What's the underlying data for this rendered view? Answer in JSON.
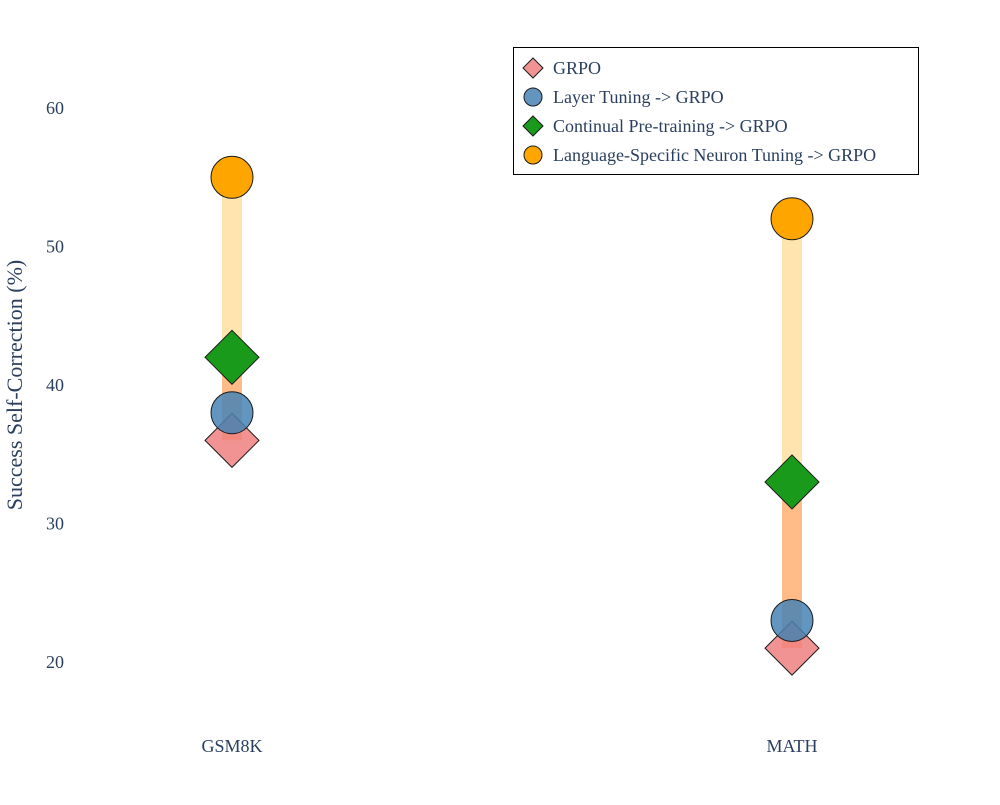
{
  "chart_data": {
    "type": "scatter",
    "categories": [
      "GSM8K",
      "MATH"
    ],
    "ylabel": "Success Self-Correction (%)",
    "xlabel": "",
    "ylim": [
      15,
      65
    ],
    "yticks": [
      20,
      30,
      40,
      50,
      60
    ],
    "grid": false,
    "legend_position": "top-right",
    "series": [
      {
        "name": "GRPO",
        "marker": "diamond",
        "color": "#f08080",
        "opacity": 0.85,
        "values": [
          36,
          21
        ]
      },
      {
        "name": "Layer Tuning -> GRPO",
        "marker": "circle",
        "color": "#4682b4",
        "opacity": 0.85,
        "values": [
          38,
          23
        ]
      },
      {
        "name": "Continual Pre-training -> GRPO",
        "marker": "diamond",
        "color": "#1a9a1a",
        "opacity": 1,
        "values": [
          42,
          33
        ]
      },
      {
        "name": "Language-Specific Neuron Tuning -> GRPO",
        "marker": "circle",
        "color": "#ffa500",
        "opacity": 1,
        "values": [
          55,
          52
        ]
      }
    ],
    "connectors": {
      "lower_color": "#ffbb88",
      "upper_color": "#ffe4b0"
    }
  }
}
